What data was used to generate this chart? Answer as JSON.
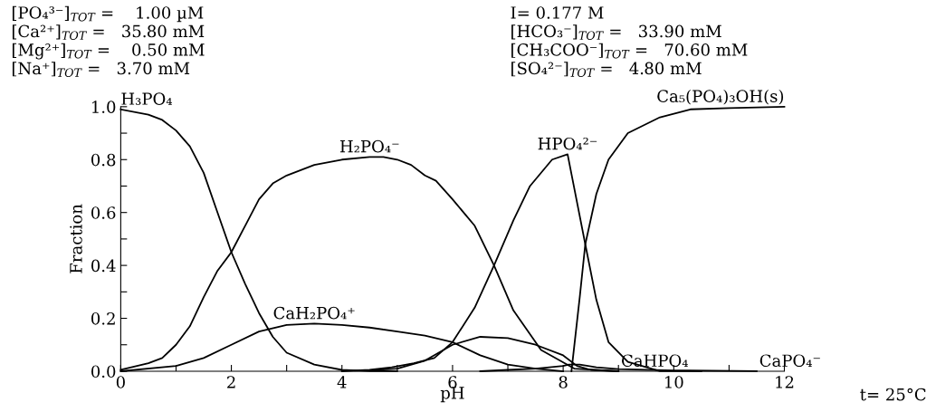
{
  "chart_data": {
    "type": "line",
    "xlabel": "pH",
    "ylabel": "Fraction",
    "xlim": [
      0,
      12
    ],
    "xticks": [
      0,
      {
        "value": 1,
        "label": null
      },
      2,
      {
        "value": 3,
        "label": null
      },
      4,
      {
        "value": 5,
        "label": null
      },
      6,
      {
        "value": 7,
        "label": null
      },
      8,
      {
        "value": 9,
        "label": null
      },
      10,
      {
        "value": 11,
        "label": null
      },
      12
    ],
    "ylim": [
      0,
      1.0
    ],
    "yticks": [
      {
        "value": 0,
        "label": "0.0"
      },
      {
        "value": 0.1,
        "label": null
      },
      {
        "value": 0.2,
        "label": "0.2"
      },
      {
        "value": 0.3,
        "label": null
      },
      {
        "value": 0.4,
        "label": "0.4"
      },
      {
        "value": 0.5,
        "label": null
      },
      {
        "value": 0.6,
        "label": "0.6"
      },
      {
        "value": 0.7,
        "label": null
      },
      {
        "value": 0.8,
        "label": "0.8"
      },
      {
        "value": 0.9,
        "label": null
      },
      {
        "value": 1.0,
        "label": "1.0"
      }
    ],
    "grid": false,
    "legend": false,
    "annotations": [
      "[PO₄³⁻]$_{TOT}$ =    1.00 µM",
      "[Ca²⁺]$_{TOT}$ =   35.80 mM",
      "[Mg²⁺]$_{TOT}$ =    0.50 mM",
      "[Na⁺]$_{TOT}$ =   3.70 mM",
      "I= 0.177 M",
      "[HCO₃⁻]$_{TOT}$ =   33.90 mM",
      "[CH₃COO⁻]$_{TOT}$ =   70.60 mM",
      "[SO₄²⁻]$_{TOT}$ =   4.80 mM",
      "t= 25°C"
    ],
    "series": [
      {
        "name": "H₃PO₄",
        "color": "#000000",
        "x": [
          0,
          0.5,
          0.75,
          1,
          1.25,
          1.5,
          1.75,
          2,
          2.25,
          2.5,
          2.75,
          3,
          3.5,
          4,
          4.5,
          5
        ],
        "values": [
          0.99,
          0.97,
          0.95,
          0.91,
          0.85,
          0.75,
          0.6,
          0.45,
          0.33,
          0.22,
          0.13,
          0.07,
          0.025,
          0.005,
          0,
          0
        ]
      },
      {
        "name": "H₂PO₄⁻",
        "color": "#000000",
        "x": [
          0,
          0.5,
          0.75,
          1,
          1.25,
          1.5,
          1.75,
          2,
          2.25,
          2.5,
          2.75,
          3,
          3.5,
          4,
          4.5,
          4.75,
          5,
          5.25,
          5.5,
          5.7,
          6,
          6.4,
          6.75,
          7.1,
          7.6,
          8.2,
          9
        ],
        "values": [
          0.005,
          0.03,
          0.05,
          0.1,
          0.17,
          0.28,
          0.38,
          0.45,
          0.55,
          0.65,
          0.71,
          0.74,
          0.78,
          0.8,
          0.81,
          0.81,
          0.8,
          0.78,
          0.74,
          0.72,
          0.65,
          0.55,
          0.4,
          0.23,
          0.08,
          0.01,
          0
        ]
      },
      {
        "name": "HPO₄²⁻",
        "color": "#000000",
        "x": [
          4,
          4.5,
          4.9,
          5.3,
          5.67,
          6,
          6.4,
          6.75,
          7.1,
          7.4,
          7.8,
          8.08,
          8.4,
          8.6,
          8.82,
          9.17,
          9.75,
          10.5
        ],
        "values": [
          0,
          0.005,
          0.015,
          0.03,
          0.05,
          0.11,
          0.24,
          0.4,
          0.57,
          0.7,
          0.8,
          0.82,
          0.48,
          0.27,
          0.11,
          0.035,
          0,
          0
        ]
      },
      {
        "name": "Ca₅(PO₄)₃OH(s)",
        "color": "#000000",
        "x": [
          8.15,
          8.3,
          8.4,
          8.6,
          8.82,
          9.17,
          9.75,
          10.3,
          11,
          12
        ],
        "values": [
          0,
          0.28,
          0.48,
          0.67,
          0.8,
          0.9,
          0.96,
          0.99,
          0.995,
          1.0
        ]
      },
      {
        "name": "CaH₂PO₄⁺",
        "color": "#000000",
        "x": [
          0,
          1,
          1.5,
          2,
          2.5,
          3,
          3.5,
          4,
          4.5,
          5,
          5.5,
          6,
          6.5,
          7,
          7.5,
          8
        ],
        "values": [
          0,
          0.02,
          0.05,
          0.1,
          0.15,
          0.175,
          0.18,
          0.175,
          0.165,
          0.15,
          0.135,
          0.11,
          0.06,
          0.025,
          0.01,
          0
        ]
      },
      {
        "name": "CaHPO₄",
        "color": "#000000",
        "x": [
          4.5,
          5,
          5.5,
          6,
          6.5,
          7,
          7.5,
          8,
          8.25,
          8.5,
          9
        ],
        "values": [
          0.003,
          0.01,
          0.04,
          0.1,
          0.13,
          0.125,
          0.1,
          0.06,
          0.02,
          0.005,
          0
        ]
      },
      {
        "name": "CaPO₄⁻",
        "color": "#000000",
        "x": [
          6.5,
          7,
          7.5,
          8,
          8.1,
          8.3,
          8.6,
          9,
          10,
          11.5
        ],
        "values": [
          0,
          0.005,
          0.01,
          0.02,
          0.025,
          0.025,
          0.015,
          0.008,
          0.003,
          0
        ]
      }
    ]
  }
}
